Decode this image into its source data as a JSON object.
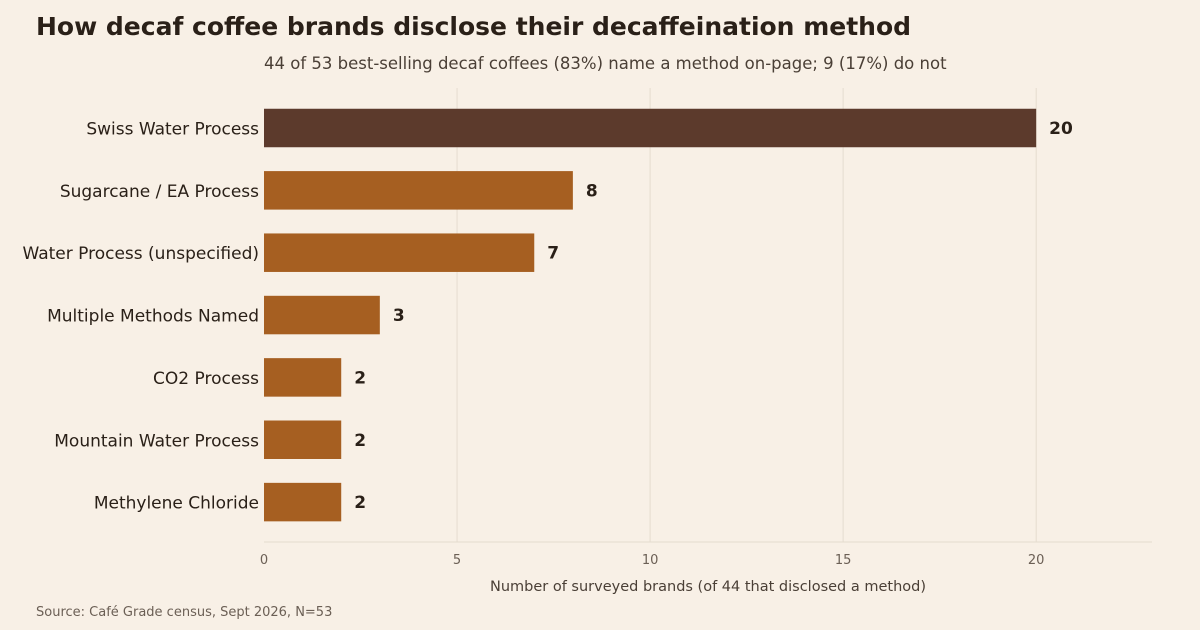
{
  "chart_data": {
    "type": "bar",
    "orientation": "horizontal",
    "title": "How decaf coffee brands disclose their decaffeination method",
    "subtitle": "44 of 53 best-selling decaf coffees (83%) name a method on-page; 9 (17%) do not",
    "xlabel": "Number of surveyed brands (of 44 that disclosed a method)",
    "ylabel": "",
    "categories": [
      "Swiss Water Process",
      "Sugarcane / EA Process",
      "Water Process (unspecified)",
      "Multiple Methods Named",
      "CO2 Process",
      "Mountain Water Process",
      "Methylene Chloride"
    ],
    "values": [
      20,
      8,
      7,
      3,
      2,
      2,
      2
    ],
    "highlight_index": 0,
    "xlim": [
      0,
      23
    ],
    "xticks": [
      0,
      5,
      10,
      15,
      20
    ],
    "grid": "vertical",
    "source": "Source: Café Grade census, Sept 2026, N=53",
    "colors": {
      "background": "#f8f0e6",
      "bar": "#a65f21",
      "bar_highlight": "#5c3a2c",
      "grid": "#e5dccf",
      "text": "#2a2018",
      "muted": "#4a3f36"
    }
  }
}
